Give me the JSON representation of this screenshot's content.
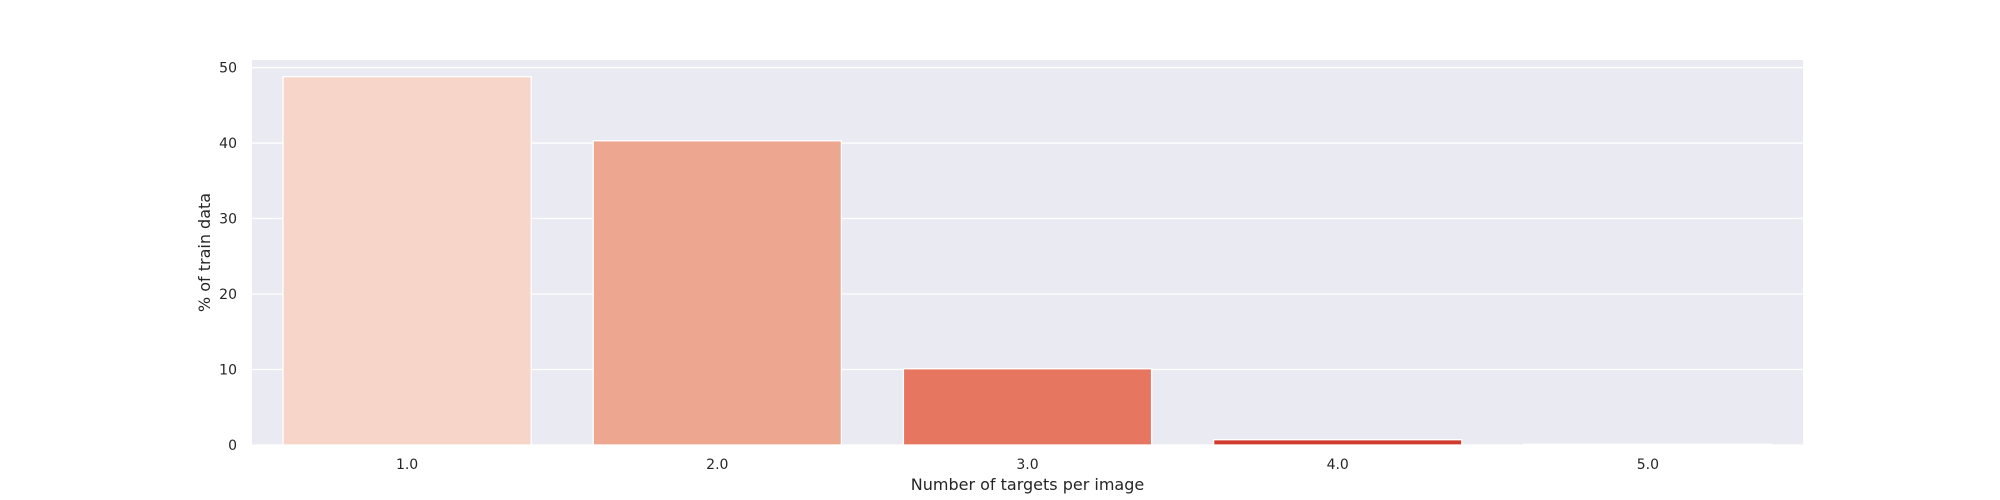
{
  "chart_data": {
    "type": "bar",
    "categories": [
      "1.0",
      "2.0",
      "3.0",
      "4.0",
      "5.0"
    ],
    "values": [
      48.8,
      40.3,
      10.1,
      0.7,
      0.1
    ],
    "xlabel": "Number of targets per image",
    "ylabel": "% of train data",
    "ylim": [
      0,
      51
    ],
    "yticks": [
      "0",
      "10",
      "20",
      "30",
      "40",
      "50"
    ],
    "ytick_values": [
      0,
      10,
      20,
      30,
      40,
      50
    ],
    "grid": true,
    "legend": "none",
    "colors": [
      "#f7d6c9",
      "#eda690",
      "#e77661",
      "#d03c30",
      "#a81f26"
    ],
    "background": "#eaeaf2",
    "grid_color": "#ffffff"
  }
}
